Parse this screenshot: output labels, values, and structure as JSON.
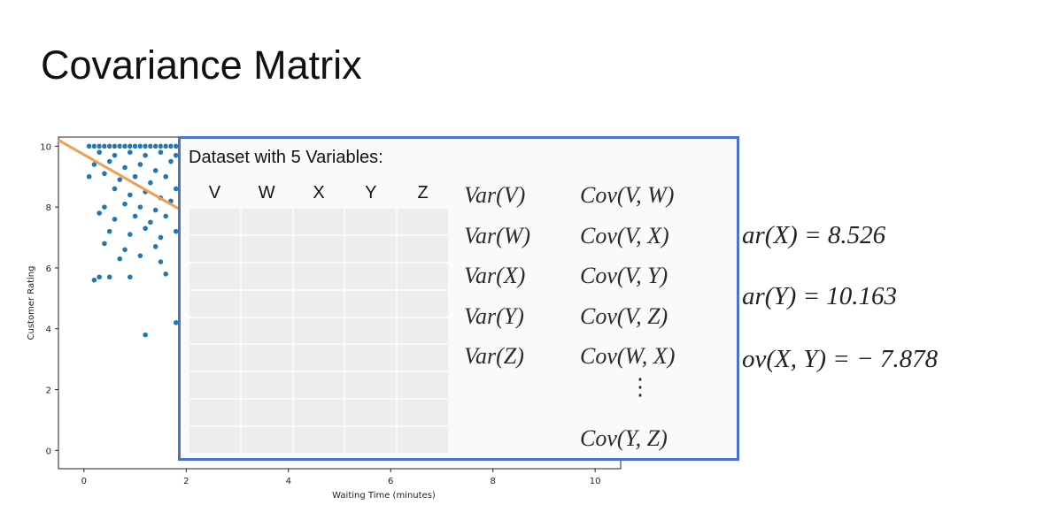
{
  "title": "Covariance Matrix",
  "chart_data": {
    "type": "scatter",
    "xlabel": "Waiting Time (minutes)",
    "ylabel": "Customer Rating",
    "xlim": [
      -0.5,
      10.5
    ],
    "ylim": [
      -0.6,
      10.3
    ],
    "x_ticks": [
      "0",
      "2",
      "4",
      "6",
      "8",
      "10"
    ],
    "y_ticks": [
      "0",
      "2",
      "4",
      "6",
      "8",
      "10"
    ],
    "marker_color": "#1f77b4",
    "trend_color": "#f0a050",
    "trend_line": {
      "x": [
        -0.5,
        1.9
      ],
      "y": [
        10.2,
        7.9
      ]
    },
    "points": [
      [
        0.1,
        10
      ],
      [
        0.2,
        10
      ],
      [
        0.3,
        10
      ],
      [
        0.4,
        10
      ],
      [
        0.5,
        10
      ],
      [
        0.6,
        10
      ],
      [
        0.7,
        10
      ],
      [
        0.8,
        10
      ],
      [
        0.9,
        10
      ],
      [
        1.0,
        10
      ],
      [
        1.1,
        10
      ],
      [
        1.2,
        10
      ],
      [
        1.3,
        10
      ],
      [
        1.4,
        10
      ],
      [
        1.5,
        10
      ],
      [
        1.6,
        10
      ],
      [
        1.7,
        10
      ],
      [
        1.8,
        10
      ],
      [
        1.9,
        10
      ],
      [
        0.3,
        9.8
      ],
      [
        0.6,
        9.7
      ],
      [
        0.9,
        9.8
      ],
      [
        1.2,
        9.7
      ],
      [
        1.5,
        9.8
      ],
      [
        1.8,
        9.7
      ],
      [
        0.2,
        9.4
      ],
      [
        0.5,
        9.5
      ],
      [
        0.8,
        9.3
      ],
      [
        1.1,
        9.4
      ],
      [
        1.4,
        9.2
      ],
      [
        1.7,
        9.5
      ],
      [
        1.9,
        9.3
      ],
      [
        0.1,
        9.0
      ],
      [
        0.4,
        9.1
      ],
      [
        0.7,
        8.9
      ],
      [
        1.0,
        9.0
      ],
      [
        1.3,
        8.8
      ],
      [
        1.6,
        9.0
      ],
      [
        1.9,
        8.7
      ],
      [
        0.6,
        8.6
      ],
      [
        0.9,
        8.4
      ],
      [
        1.2,
        8.5
      ],
      [
        1.5,
        8.3
      ],
      [
        1.8,
        8.6
      ],
      [
        0.4,
        8.0
      ],
      [
        0.8,
        8.1
      ],
      [
        1.1,
        8.0
      ],
      [
        1.4,
        7.9
      ],
      [
        1.7,
        8.2
      ],
      [
        0.3,
        7.8
      ],
      [
        0.6,
        7.6
      ],
      [
        1.0,
        7.7
      ],
      [
        1.3,
        7.5
      ],
      [
        1.6,
        7.7
      ],
      [
        1.9,
        7.4
      ],
      [
        0.5,
        7.2
      ],
      [
        0.9,
        7.1
      ],
      [
        1.2,
        7.3
      ],
      [
        1.5,
        7.0
      ],
      [
        1.8,
        7.2
      ],
      [
        0.4,
        6.8
      ],
      [
        0.8,
        6.6
      ],
      [
        1.4,
        6.7
      ],
      [
        1.9,
        6.9
      ],
      [
        0.7,
        6.3
      ],
      [
        1.1,
        6.4
      ],
      [
        1.5,
        6.2
      ],
      [
        1.9,
        6.4
      ],
      [
        0.2,
        5.6
      ],
      [
        0.3,
        5.7
      ],
      [
        0.5,
        5.7
      ],
      [
        0.9,
        5.7
      ],
      [
        1.6,
        5.8
      ],
      [
        1.9,
        5.6
      ],
      [
        1.2,
        3.8
      ],
      [
        1.8,
        4.2
      ]
    ]
  },
  "equations": {
    "var_x": "ar(X) = 8.526",
    "var_y": "ar(Y) = 10.163",
    "cov_xy": "ov(X, Y) = − 7.878"
  },
  "popup": {
    "title": "Dataset with 5 Variables:",
    "columns": [
      "V",
      "W",
      "X",
      "Y",
      "Z"
    ],
    "variances": [
      "Var(V)",
      "Var(W)",
      "Var(X)",
      "Var(Y)",
      "Var(Z)"
    ],
    "covariances": [
      "Cov(V, W)",
      "Cov(V, X)",
      "Cov(V, Y)",
      "Cov(V, Z)",
      "Cov(W, X)"
    ],
    "ellipsis": "⋮",
    "last_covariance": "Cov(Y, Z)"
  }
}
